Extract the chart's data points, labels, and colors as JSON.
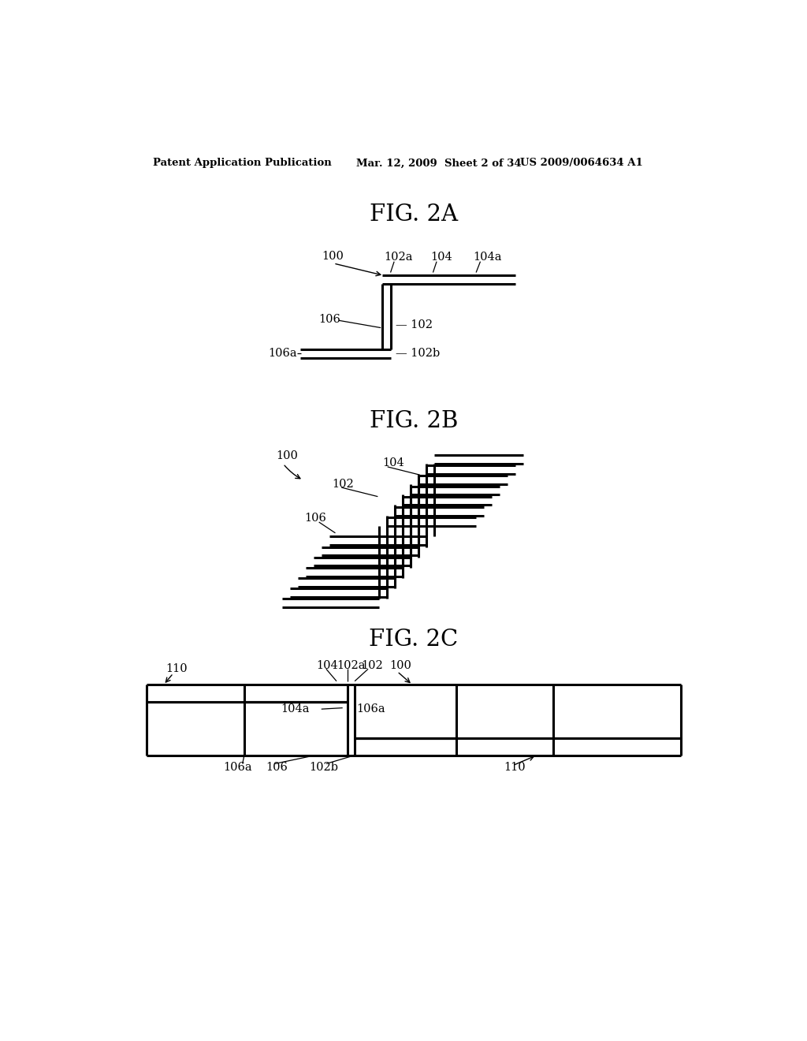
{
  "bg_color": "#ffffff",
  "header_left": "Patent Application Publication",
  "header_mid": "Mar. 12, 2009  Sheet 2 of 34",
  "header_right": "US 2009/0064634 A1",
  "fig2a_title": "FIG. 2A",
  "fig2b_title": "FIG. 2B",
  "fig2c_title": "FIG. 2C",
  "line_color": "#000000",
  "line_width": 2.2,
  "n_layers_2b": 7
}
